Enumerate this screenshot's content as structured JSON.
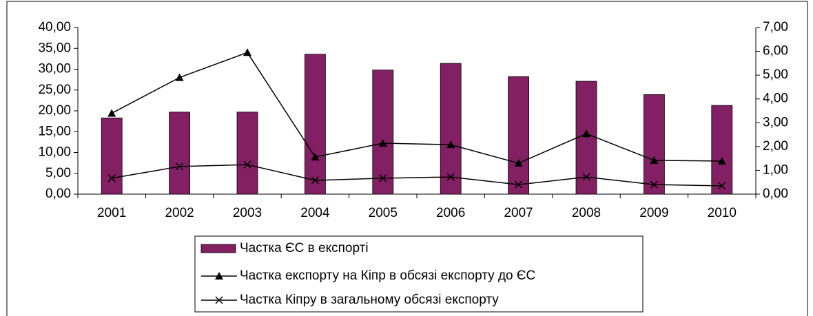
{
  "chart_data": {
    "type": "bar",
    "categories": [
      "2001",
      "2002",
      "2003",
      "2004",
      "2005",
      "2006",
      "2007",
      "2008",
      "2009",
      "2010"
    ],
    "series": [
      {
        "name": "Частка ЄС в експорті",
        "type": "bar",
        "color": "#832063",
        "axis": "y",
        "values": [
          18.3,
          19.7,
          19.7,
          33.6,
          29.8,
          31.4,
          28.2,
          27.1,
          23.9,
          21.3
        ]
      },
      {
        "name": "Частка експорту на Кіпр в обсязі експорту до ЄС",
        "type": "line",
        "marker": "triangle",
        "color": "#000000",
        "axis": "y2",
        "values": [
          3.4,
          4.9,
          5.95,
          1.56,
          2.14,
          2.08,
          1.3,
          2.54,
          1.42,
          1.39
        ]
      },
      {
        "name": "Частка Кіпру в загальному обсязі експорту",
        "type": "line",
        "marker": "x",
        "color": "#000000",
        "axis": "y2",
        "values": [
          0.67,
          1.16,
          1.24,
          0.58,
          0.67,
          0.72,
          0.4,
          0.72,
          0.4,
          0.35
        ]
      }
    ],
    "ylim": [
      0,
      40
    ],
    "yticks": [
      {
        "value": 0,
        "label": "0,00"
      },
      {
        "value": 5,
        "label": "5,00"
      },
      {
        "value": 10,
        "label": "10,00"
      },
      {
        "value": 15,
        "label": "15,00"
      },
      {
        "value": 20,
        "label": "20,00"
      },
      {
        "value": 25,
        "label": "25,00"
      },
      {
        "value": 30,
        "label": "30,00"
      },
      {
        "value": 35,
        "label": "35,00"
      },
      {
        "value": 40,
        "label": "40,00"
      }
    ],
    "y2lim": [
      0,
      7
    ],
    "y2ticks": [
      {
        "value": 0,
        "label": "0,00"
      },
      {
        "value": 1,
        "label": "1,00"
      },
      {
        "value": 2,
        "label": "2,00"
      },
      {
        "value": 3,
        "label": "3,00"
      },
      {
        "value": 4,
        "label": "4,00"
      },
      {
        "value": 5,
        "label": "5,00"
      },
      {
        "value": 6,
        "label": "6,00"
      },
      {
        "value": 7,
        "label": "7,00"
      }
    ],
    "legend": "bottom"
  }
}
